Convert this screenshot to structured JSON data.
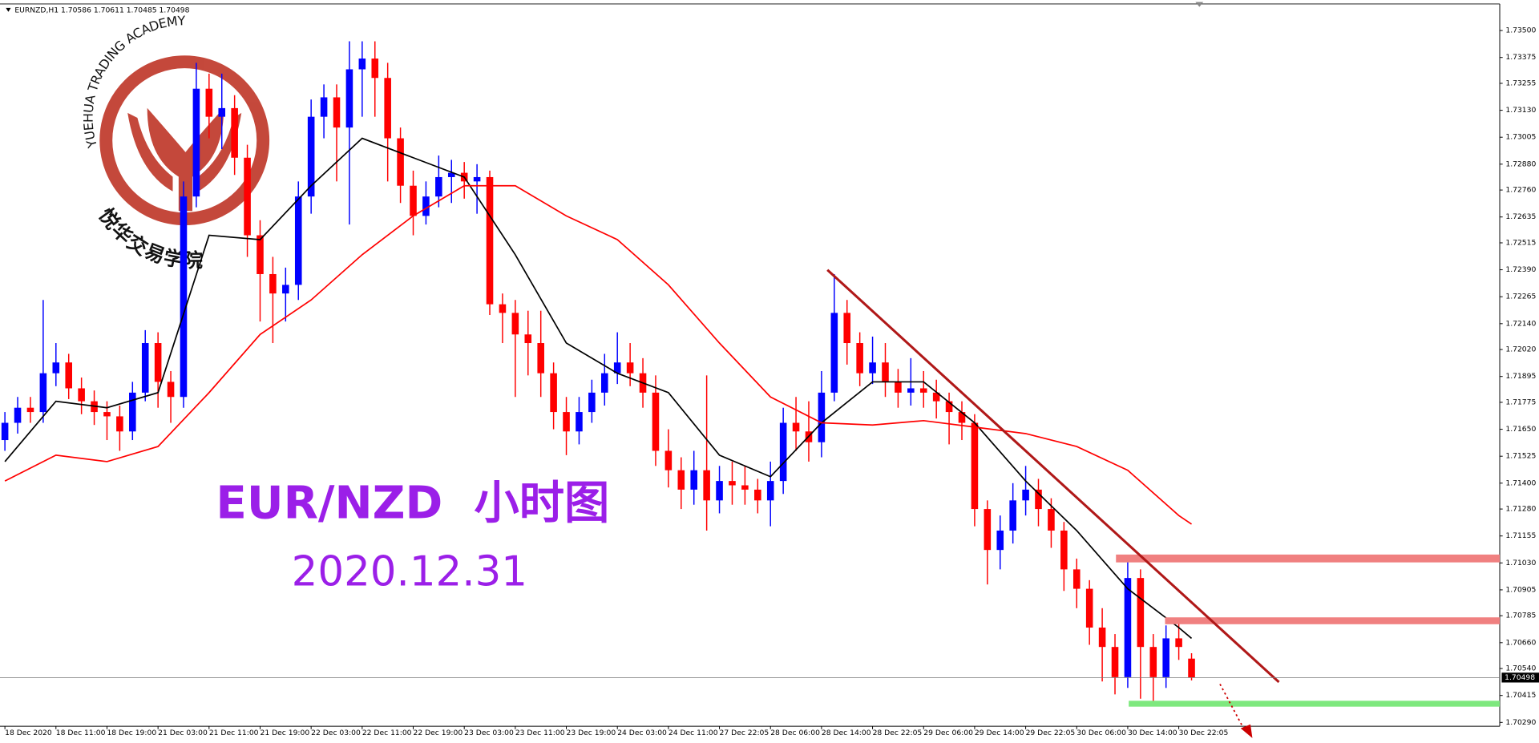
{
  "header": "EURNZD,H1  1.70586 1.70611 1.70485 1.70498",
  "logo": {
    "top_text": "YUEHUA TRADING ACADEMY",
    "bottom_text": "悦华交易学院"
  },
  "chart_data": {
    "type": "candlestick",
    "title": "EUR/NZD  小时图",
    "subtitle": "2020.12.31",
    "categories": [
      "18 Dec 2020",
      null,
      null,
      null,
      "18 Dec 11:00",
      null,
      null,
      null,
      "18 Dec 19:00",
      null,
      null,
      null,
      "21 Dec 03:00",
      null,
      null,
      null,
      "21 Dec 11:00",
      null,
      null,
      null,
      "21 Dec 19:00",
      null,
      null,
      null,
      "22 Dec 03:00",
      null,
      null,
      null,
      "22 Dec 11:00",
      null,
      null,
      null,
      "22 Dec 19:00",
      null,
      null,
      null,
      "23 Dec 03:00",
      null,
      null,
      null,
      "23 Dec 11:00",
      null,
      null,
      null,
      "23 Dec 19:00",
      null,
      null,
      null,
      "24 Dec 03:00",
      null,
      null,
      null,
      "24 Dec 11:00",
      null,
      null,
      null,
      "27 Dec 22:05",
      null,
      null,
      null,
      "28 Dec 06:00",
      null,
      null,
      null,
      "28 Dec 14:00",
      null,
      null,
      null,
      "28 Dec 22:05",
      null,
      null,
      null,
      "29 Dec 06:00",
      null,
      null,
      null,
      "29 Dec 14:00",
      null,
      null,
      null,
      "29 Dec 22:05",
      null,
      null,
      null,
      "30 Dec 06:00",
      null,
      null,
      null,
      "30 Dec 14:00",
      null,
      null,
      null,
      "30 Dec 22:05",
      null
    ],
    "open": [
      1.716,
      1.7168,
      1.7175,
      1.7173,
      1.7191,
      1.7196,
      1.7184,
      1.7178,
      1.7173,
      1.7171,
      1.7164,
      1.7182,
      1.7205,
      1.7187,
      1.718,
      1.7273,
      1.7323,
      1.731,
      1.7314,
      1.7291,
      1.7255,
      1.7237,
      1.7228,
      1.7232,
      1.7273,
      1.731,
      1.7319,
      1.7305,
      1.7332,
      1.7337,
      1.7328,
      1.73,
      1.7278,
      1.7264,
      1.7273,
      1.7282,
      1.7284,
      1.728,
      1.7282,
      1.7223,
      1.7219,
      1.7209,
      1.7205,
      1.7191,
      1.7173,
      1.7164,
      1.7173,
      1.7182,
      1.7191,
      1.7196,
      1.7191,
      1.7182,
      1.7155,
      1.7146,
      1.7137,
      1.7146,
      1.7132,
      1.7141,
      1.7139,
      1.7137,
      1.7132,
      1.7141,
      1.7168,
      1.7164,
      1.7159,
      1.7182,
      1.7219,
      1.7205,
      1.7191,
      1.7196,
      1.7187,
      1.7182,
      1.7184,
      1.7182,
      1.7178,
      1.7173,
      1.7168,
      1.7128,
      1.7109,
      1.7118,
      1.7132,
      1.7137,
      1.7128,
      1.7118,
      1.71,
      1.7091,
      1.7073,
      1.7064,
      1.705,
      1.7096,
      1.7064,
      1.705,
      1.7068,
      1.70586
    ],
    "high": [
      1.7173,
      1.718,
      1.718,
      1.7225,
      1.7205,
      1.72,
      1.7189,
      1.7183,
      1.7178,
      1.7176,
      1.7187,
      1.7211,
      1.721,
      1.7192,
      1.728,
      1.7335,
      1.733,
      1.733,
      1.732,
      1.7297,
      1.7262,
      1.7245,
      1.724,
      1.728,
      1.7318,
      1.7325,
      1.7325,
      1.7345,
      1.7345,
      1.7345,
      1.7335,
      1.7305,
      1.7285,
      1.728,
      1.7292,
      1.729,
      1.7289,
      1.7288,
      1.7285,
      1.7228,
      1.7225,
      1.722,
      1.722,
      1.7196,
      1.718,
      1.718,
      1.7188,
      1.72,
      1.721,
      1.7205,
      1.7198,
      1.719,
      1.7165,
      1.7152,
      1.7155,
      1.719,
      1.7148,
      1.715,
      1.7148,
      1.7142,
      1.715,
      1.7175,
      1.718,
      1.7178,
      1.7192,
      1.7237,
      1.7225,
      1.721,
      1.7208,
      1.7205,
      1.7193,
      1.7198,
      1.7192,
      1.7188,
      1.7182,
      1.7178,
      1.7172,
      1.7132,
      1.7125,
      1.714,
      1.7148,
      1.7142,
      1.7133,
      1.7122,
      1.7105,
      1.7095,
      1.7082,
      1.707,
      1.7104,
      1.71,
      1.707,
      1.7074,
      1.7076,
      1.70611
    ],
    "low": [
      1.7155,
      1.7163,
      1.7168,
      1.7168,
      1.7185,
      1.7179,
      1.7172,
      1.7167,
      1.716,
      1.7155,
      1.716,
      1.7178,
      1.7175,
      1.7168,
      1.7175,
      1.7268,
      1.73,
      1.7295,
      1.7283,
      1.7245,
      1.7215,
      1.7205,
      1.7215,
      1.7225,
      1.7265,
      1.73,
      1.728,
      1.726,
      1.731,
      1.731,
      1.728,
      1.727,
      1.7255,
      1.726,
      1.7268,
      1.727,
      1.7272,
      1.7265,
      1.7218,
      1.7205,
      1.718,
      1.719,
      1.718,
      1.7165,
      1.7153,
      1.7158,
      1.7168,
      1.7176,
      1.7186,
      1.7185,
      1.7175,
      1.7148,
      1.7138,
      1.7128,
      1.713,
      1.7118,
      1.7126,
      1.713,
      1.713,
      1.7126,
      1.712,
      1.7135,
      1.7155,
      1.715,
      1.7152,
      1.7178,
      1.7195,
      1.7185,
      1.7186,
      1.718,
      1.7175,
      1.7176,
      1.7175,
      1.717,
      1.7158,
      1.716,
      1.712,
      1.7093,
      1.71,
      1.7112,
      1.7125,
      1.712,
      1.711,
      1.709,
      1.7082,
      1.7065,
      1.7048,
      1.7042,
      1.7045,
      1.704,
      1.7038,
      1.7045,
      1.7058,
      1.70485
    ],
    "close": [
      1.7168,
      1.7175,
      1.7173,
      1.7191,
      1.7196,
      1.7184,
      1.7178,
      1.7173,
      1.7171,
      1.7164,
      1.7182,
      1.7205,
      1.7187,
      1.718,
      1.7273,
      1.7323,
      1.731,
      1.7314,
      1.7291,
      1.7255,
      1.7237,
      1.7228,
      1.7232,
      1.7273,
      1.731,
      1.7319,
      1.7305,
      1.7332,
      1.7337,
      1.7328,
      1.73,
      1.7278,
      1.7264,
      1.7273,
      1.7282,
      1.7284,
      1.728,
      1.7282,
      1.7223,
      1.7219,
      1.7209,
      1.7205,
      1.7191,
      1.7173,
      1.7164,
      1.7173,
      1.7182,
      1.7191,
      1.7196,
      1.7191,
      1.7182,
      1.7155,
      1.7146,
      1.7137,
      1.7146,
      1.7132,
      1.7141,
      1.7139,
      1.7137,
      1.7132,
      1.7141,
      1.7168,
      1.7164,
      1.7159,
      1.7182,
      1.7219,
      1.7205,
      1.7191,
      1.7196,
      1.7187,
      1.7182,
      1.7184,
      1.7182,
      1.7178,
      1.7173,
      1.7168,
      1.7128,
      1.7109,
      1.7118,
      1.7132,
      1.7137,
      1.7128,
      1.7118,
      1.71,
      1.7091,
      1.7073,
      1.7064,
      1.705,
      1.7096,
      1.7064,
      1.705,
      1.7068,
      1.7064,
      1.70498
    ],
    "up_color": "#0000ff",
    "down_color": "#ff0000",
    "overlays": [
      {
        "color": "#000000",
        "x": [
          0,
          4,
          8,
          12,
          16,
          20,
          24,
          28,
          32,
          36,
          40,
          44,
          48,
          52,
          56,
          60,
          64,
          68,
          72,
          76,
          80,
          84,
          88,
          92,
          93
        ],
        "values": [
          1.715,
          1.7178,
          1.7175,
          1.7182,
          1.7255,
          1.7253,
          1.7278,
          1.73,
          1.7291,
          1.7282,
          1.7246,
          1.7205,
          1.7191,
          1.7182,
          1.7153,
          1.7143,
          1.7168,
          1.7187,
          1.7187,
          1.7168,
          1.7141,
          1.7118,
          1.7091,
          1.7073,
          1.7068
        ]
      },
      {
        "color": "#ff0000",
        "x": [
          0,
          4,
          8,
          12,
          16,
          20,
          24,
          28,
          32,
          36,
          40,
          44,
          48,
          52,
          56,
          60,
          64,
          68,
          72,
          76,
          80,
          84,
          88,
          92,
          93
        ],
        "values": [
          1.7141,
          1.7153,
          1.715,
          1.7157,
          1.7182,
          1.7209,
          1.7225,
          1.7246,
          1.7264,
          1.7278,
          1.7278,
          1.7264,
          1.7253,
          1.7232,
          1.7205,
          1.718,
          1.7168,
          1.7167,
          1.7169,
          1.7166,
          1.7163,
          1.7157,
          1.7146,
          1.7125,
          1.7121
        ]
      }
    ],
    "current_price": {
      "value": 1.70498,
      "label": "1.70498"
    },
    "ylim": [
      1.70272,
      1.73596
    ],
    "yticks": [
      {
        "value": 1.735,
        "label": "1.73500"
      },
      {
        "value": 1.73375,
        "label": "1.73375"
      },
      {
        "value": 1.73255,
        "label": "1.73255"
      },
      {
        "value": 1.7313,
        "label": "1.73130"
      },
      {
        "value": 1.73005,
        "label": "1.73005"
      },
      {
        "value": 1.7288,
        "label": "1.72880"
      },
      {
        "value": 1.7276,
        "label": "1.72760"
      },
      {
        "value": 1.72635,
        "label": "1.72635"
      },
      {
        "value": 1.72515,
        "label": "1.72515"
      },
      {
        "value": 1.7239,
        "label": "1.72390"
      },
      {
        "value": 1.72265,
        "label": "1.72265"
      },
      {
        "value": 1.7214,
        "label": "1.72140"
      },
      {
        "value": 1.7202,
        "label": "1.72020"
      },
      {
        "value": 1.71895,
        "label": "1.71895"
      },
      {
        "value": 1.71775,
        "label": "1.71775"
      },
      {
        "value": 1.7165,
        "label": "1.71650"
      },
      {
        "value": 1.71525,
        "label": "1.71525"
      },
      {
        "value": 1.714,
        "label": "1.71400"
      },
      {
        "value": 1.7128,
        "label": "1.71280"
      },
      {
        "value": 1.71155,
        "label": "1.71155"
      },
      {
        "value": 1.7103,
        "label": "1.71030"
      },
      {
        "value": 1.70905,
        "label": "1.70905"
      },
      {
        "value": 1.70785,
        "label": "1.70785"
      },
      {
        "value": 1.7066,
        "label": "1.70660"
      },
      {
        "value": 1.7054,
        "label": "1.70540"
      },
      {
        "value": 1.70415,
        "label": "1.70415"
      },
      {
        "value": 1.7029,
        "label": "1.70290"
      }
    ],
    "grid": false
  }
}
